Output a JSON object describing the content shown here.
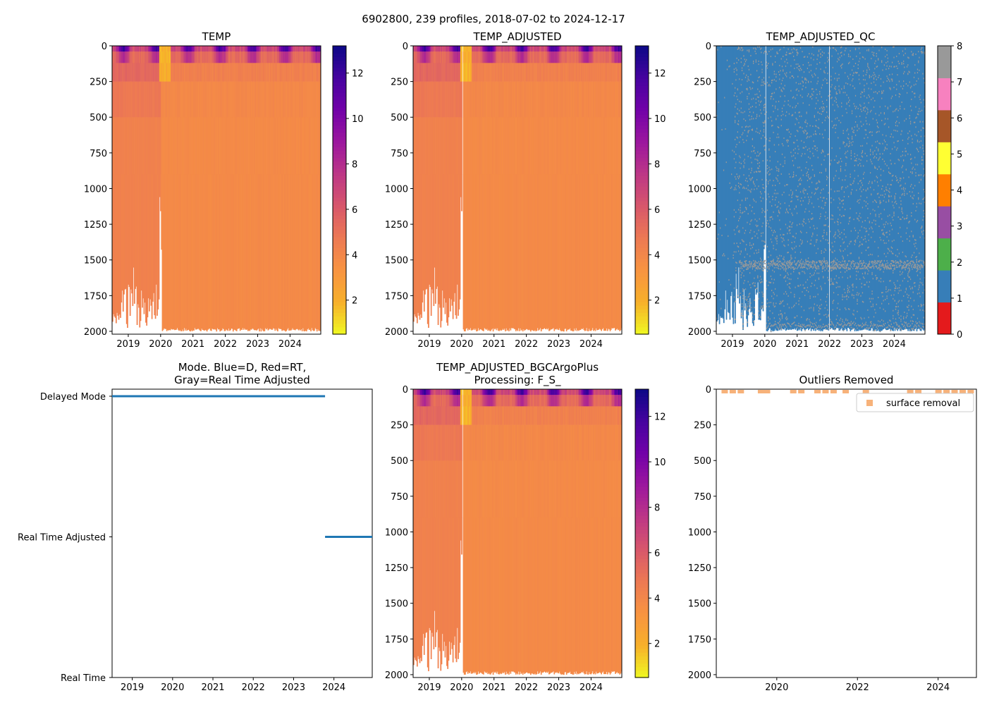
{
  "figure": {
    "suptitle": "6902800, 239 profiles, 2018-07-02 to 2024-12-17"
  },
  "colors": {
    "plasma": [
      "#f0f921",
      "#f7b02a",
      "#f89441",
      "#ed7953",
      "#d8576b",
      "#bd3786",
      "#9c179e",
      "#7201a8",
      "#46039f",
      "#0d0887"
    ],
    "qc": [
      "#e41a1c",
      "#377eb8",
      "#4daf4a",
      "#984ea3",
      "#ff7f00",
      "#ffff33",
      "#a65628",
      "#f781bf",
      "#999999"
    ],
    "mode_line": "#1f77b4",
    "outlier_marker": "#f7b27a"
  },
  "chart_data": [
    {
      "id": "temp",
      "type": "heatmap",
      "title": "TEMP",
      "x_ticks": [
        "2019",
        "2020",
        "2021",
        "2022",
        "2023",
        "2024"
      ],
      "y_ticks": [
        "0",
        "250",
        "500",
        "750",
        "1000",
        "1250",
        "1500",
        "1750",
        "2000"
      ],
      "xlim": [
        2018.5,
        2024.95
      ],
      "ylim": [
        2020,
        0
      ],
      "colorbar": {
        "ticks": [
          "2",
          "4",
          "6",
          "8",
          "10",
          "12"
        ],
        "range": [
          0.5,
          13.2
        ]
      },
      "dominant_value": 3.6
    },
    {
      "id": "temp_adj",
      "type": "heatmap",
      "title": "TEMP_ADJUSTED",
      "x_ticks": [
        "2019",
        "2020",
        "2021",
        "2022",
        "2023",
        "2024"
      ],
      "y_ticks": [
        "0",
        "250",
        "500",
        "750",
        "1000",
        "1250",
        "1500",
        "1750",
        "2000"
      ],
      "xlim": [
        2018.5,
        2024.95
      ],
      "ylim": [
        2020,
        0
      ],
      "colorbar": {
        "ticks": [
          "2",
          "4",
          "6",
          "8",
          "10",
          "12"
        ],
        "range": [
          0.5,
          13.2
        ]
      },
      "dominant_value": 3.6
    },
    {
      "id": "qc",
      "type": "heatmap",
      "title": "TEMP_ADJUSTED_QC",
      "x_ticks": [
        "2019",
        "2020",
        "2021",
        "2022",
        "2023",
        "2024"
      ],
      "y_ticks": [
        "0",
        "250",
        "500",
        "750",
        "1000",
        "1250",
        "1500",
        "1750",
        "2000"
      ],
      "xlim": [
        2018.5,
        2024.95
      ],
      "ylim": [
        2020,
        0
      ],
      "colorbar": {
        "ticks": [
          "0",
          "1",
          "2",
          "3",
          "4",
          "5",
          "6",
          "7",
          "8"
        ],
        "range": [
          0,
          8
        ]
      },
      "dominant_value": 1
    },
    {
      "id": "mode",
      "type": "line",
      "title_lines": [
        "Mode. Blue=D, Red=RT,",
        "Gray=Real Time Adjusted"
      ],
      "x_ticks": [
        "2019",
        "2020",
        "2021",
        "2022",
        "2023",
        "2024"
      ],
      "y_ticks": [
        "Delayed Mode",
        "Real Time Adjusted",
        "Real Time"
      ],
      "xlim": [
        2018.5,
        2024.95
      ],
      "series": [
        {
          "name": "Delayed Mode",
          "x": [
            2018.5,
            2023.78
          ],
          "level": 2
        },
        {
          "name": "Real Time Adjusted",
          "x": [
            2023.78,
            2024.95
          ],
          "level": 1
        }
      ]
    },
    {
      "id": "bgc",
      "type": "heatmap",
      "title_lines": [
        "TEMP_ADJUSTED_BGCArgoPlus",
        "Processing: F_S_"
      ],
      "x_ticks": [
        "2019",
        "2020",
        "2021",
        "2022",
        "2023",
        "2024"
      ],
      "y_ticks": [
        "0",
        "250",
        "500",
        "750",
        "1000",
        "1250",
        "1500",
        "1750",
        "2000"
      ],
      "xlim": [
        2018.5,
        2024.95
      ],
      "ylim": [
        2020,
        0
      ],
      "colorbar": {
        "ticks": [
          "2",
          "4",
          "6",
          "8",
          "10",
          "12"
        ],
        "range": [
          0.5,
          13.2
        ]
      },
      "dominant_value": 3.6
    },
    {
      "id": "outliers",
      "type": "scatter",
      "title": "Outliers Removed",
      "x_ticks": [
        "2020",
        "2022",
        "2024"
      ],
      "y_ticks": [
        "0",
        "250",
        "500",
        "750",
        "1000",
        "1250",
        "1500",
        "1750",
        "2000"
      ],
      "xlim": [
        2018.5,
        2024.95
      ],
      "ylim": [
        2020,
        0
      ],
      "legend": "surface removal",
      "legend_loc": "upper right",
      "points": [
        {
          "x": 2018.7,
          "y": 10
        },
        {
          "x": 2018.9,
          "y": 10
        },
        {
          "x": 2019.1,
          "y": 10
        },
        {
          "x": 2019.6,
          "y": 10
        },
        {
          "x": 2019.75,
          "y": 10
        },
        {
          "x": 2020.4,
          "y": 10
        },
        {
          "x": 2020.6,
          "y": 10
        },
        {
          "x": 2021.0,
          "y": 10
        },
        {
          "x": 2021.2,
          "y": 10
        },
        {
          "x": 2021.4,
          "y": 10
        },
        {
          "x": 2021.7,
          "y": 10
        },
        {
          "x": 2022.2,
          "y": 10
        },
        {
          "x": 2023.3,
          "y": 10
        },
        {
          "x": 2023.5,
          "y": 10
        },
        {
          "x": 2024.0,
          "y": 10
        },
        {
          "x": 2024.2,
          "y": 10
        },
        {
          "x": 2024.4,
          "y": 10
        },
        {
          "x": 2024.6,
          "y": 10
        },
        {
          "x": 2024.8,
          "y": 10
        }
      ]
    }
  ]
}
